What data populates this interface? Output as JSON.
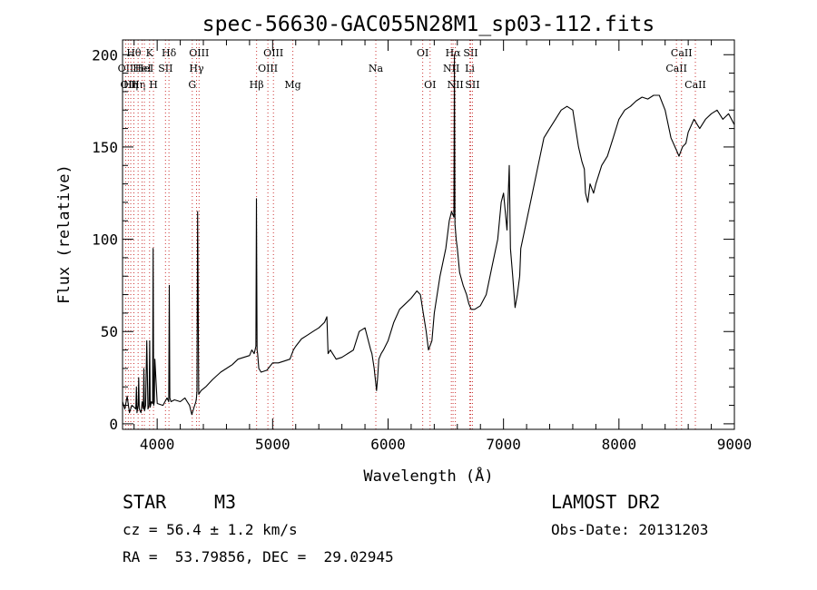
{
  "chart_data": {
    "type": "line",
    "title": "spec-56630-GAC055N28M1_sp03-112.fits",
    "xlabel": "Wavelength (Å)",
    "ylabel": "Flux (relative)",
    "xlim": [
      3700,
      9000
    ],
    "ylim": [
      -3,
      208
    ],
    "x_ticks": [
      4000,
      5000,
      6000,
      7000,
      8000,
      9000
    ],
    "x_tick_labels": [
      "4000",
      "5000",
      "6000",
      "7000",
      "8000",
      "9000"
    ],
    "y_ticks": [
      0,
      50,
      100,
      150,
      200
    ],
    "y_tick_labels": [
      "0",
      "50",
      "100",
      "150",
      "200"
    ],
    "line_color": "#000000",
    "line_marker_color": "#cc3333",
    "series": [
      {
        "name": "spectrum",
        "x": [
          3700,
          3720,
          3740,
          3760,
          3780,
          3800,
          3815,
          3820,
          3825,
          3835,
          3840,
          3845,
          3860,
          3870,
          3880,
          3885,
          3890,
          3900,
          3910,
          3920,
          3930,
          3935,
          3940,
          3950,
          3960,
          3965,
          3970,
          3975,
          3980,
          4000,
          4050,
          4085,
          4100,
          4105,
          4110,
          4120,
          4150,
          4200,
          4240,
          4260,
          4280,
          4300,
          4320,
          4335,
          4340,
          4345,
          4350,
          4360,
          4380,
          4420,
          4480,
          4550,
          4600,
          4650,
          4700,
          4750,
          4800,
          4820,
          4840,
          4855,
          4860,
          4865,
          4870,
          4880,
          4900,
          4950,
          5000,
          5050,
          5100,
          5150,
          5180,
          5200,
          5250,
          5300,
          5350,
          5400,
          5450,
          5470,
          5480,
          5500,
          5550,
          5600,
          5650,
          5700,
          5750,
          5800,
          5850,
          5860,
          5880,
          5900,
          5910,
          5920,
          5940,
          5960,
          6000,
          6050,
          6100,
          6150,
          6200,
          6250,
          6280,
          6300,
          6330,
          6350,
          6380,
          6400,
          6450,
          6500,
          6530,
          6550,
          6570,
          6575,
          6580,
          6585,
          6590,
          6600,
          6620,
          6650,
          6680,
          6700,
          6720,
          6750,
          6800,
          6850,
          6900,
          6950,
          6980,
          7000,
          7030,
          7050,
          7060,
          7080,
          7100,
          7120,
          7140,
          7150,
          7200,
          7250,
          7300,
          7350,
          7400,
          7450,
          7500,
          7550,
          7600,
          7650,
          7680,
          7700,
          7710,
          7730,
          7750,
          7780,
          7800,
          7850,
          7900,
          7950,
          8000,
          8050,
          8100,
          8150,
          8200,
          8250,
          8300,
          8350,
          8400,
          8450,
          8500,
          8520,
          8550,
          8580,
          8600,
          8650,
          8700,
          8750,
          8800,
          8850,
          8900,
          8950,
          9000
        ],
        "y": [
          12,
          8,
          15,
          6,
          10,
          9,
          8,
          20,
          6,
          10,
          25,
          8,
          6,
          12,
          8,
          30,
          7,
          10,
          45,
          8,
          10,
          45,
          9,
          12,
          11,
          95,
          10,
          12,
          35,
          11,
          10,
          14,
          12,
          75,
          14,
          12,
          13,
          12,
          14,
          12,
          10,
          5,
          9,
          12,
          14,
          18,
          115,
          16,
          18,
          20,
          24,
          28,
          30,
          32,
          35,
          36,
          37,
          40,
          38,
          42,
          122,
          40,
          38,
          30,
          28,
          29,
          33,
          33,
          34,
          35,
          40,
          42,
          46,
          48,
          50,
          52,
          55,
          58,
          38,
          40,
          35,
          36,
          38,
          40,
          50,
          52,
          40,
          38,
          30,
          18,
          25,
          35,
          38,
          40,
          45,
          55,
          62,
          65,
          68,
          72,
          70,
          62,
          50,
          40,
          45,
          60,
          80,
          95,
          110,
          115,
          112,
          200,
          108,
          104,
          100,
          95,
          82,
          75,
          70,
          65,
          62,
          62,
          64,
          70,
          85,
          100,
          120,
          125,
          105,
          140,
          95,
          80,
          63,
          70,
          80,
          95,
          110,
          125,
          140,
          155,
          160,
          165,
          170,
          172,
          170,
          150,
          142,
          138,
          125,
          120,
          130,
          125,
          130,
          140,
          145,
          155,
          165,
          170,
          172,
          175,
          177,
          176,
          178,
          178,
          170,
          155,
          148,
          145,
          150,
          152,
          158,
          165,
          160,
          165,
          168,
          170,
          165,
          168,
          162
        ]
      }
    ],
    "line_markers": [
      {
        "x": 3727,
        "label": "OII",
        "row": 2
      },
      {
        "x": 3750,
        "label": "OII",
        "row": 3
      },
      {
        "x": 3771,
        "label": "Hη",
        "row": 3
      },
      {
        "x": 3798,
        "label": "Hθ",
        "row": 1
      },
      {
        "x": 3835,
        "label": "Hη",
        "row": 3
      },
      {
        "x": 3869,
        "label": "HeI",
        "row": 2
      },
      {
        "x": 3889,
        "label": "HeI",
        "row": 2
      },
      {
        "x": 3934,
        "label": "K",
        "row": 1
      },
      {
        "x": 3968,
        "label": "H",
        "row": 3
      },
      {
        "x": 4072,
        "label": "SII",
        "row": 2
      },
      {
        "x": 4102,
        "label": "Hδ",
        "row": 1
      },
      {
        "x": 4304,
        "label": "G",
        "row": 3
      },
      {
        "x": 4341,
        "label": "Hγ",
        "row": 2
      },
      {
        "x": 4363,
        "label": "OIII",
        "row": 1
      },
      {
        "x": 4861,
        "label": "Hβ",
        "row": 3
      },
      {
        "x": 4959,
        "label": "OIII",
        "row": 2
      },
      {
        "x": 5007,
        "label": "OIII",
        "row": 1
      },
      {
        "x": 5175,
        "label": "Mg",
        "row": 3
      },
      {
        "x": 5894,
        "label": "Na",
        "row": 2
      },
      {
        "x": 6300,
        "label": "OI",
        "row": 1
      },
      {
        "x": 6364,
        "label": "OI",
        "row": 3
      },
      {
        "x": 6548,
        "label": "NII",
        "row": 2
      },
      {
        "x": 6563,
        "label": "Hα",
        "row": 1
      },
      {
        "x": 6583,
        "label": "NII",
        "row": 3
      },
      {
        "x": 6708,
        "label": "Li",
        "row": 2
      },
      {
        "x": 6716,
        "label": "SII",
        "row": 1
      },
      {
        "x": 6731,
        "label": "SII",
        "row": 3
      },
      {
        "x": 8498,
        "label": "CaII",
        "row": 2
      },
      {
        "x": 8542,
        "label": "CaII",
        "row": 1
      },
      {
        "x": 8662,
        "label": "CaII",
        "row": 3
      }
    ]
  },
  "info": {
    "object_type": "STAR",
    "subclass": "M3",
    "survey": "LAMOST DR2",
    "redshift": "cz = 56.4 ± 1.2 km/s",
    "obs_date": "Obs-Date: 20131203",
    "coordinates": "RA =  53.79856, DEC =  29.02945"
  }
}
